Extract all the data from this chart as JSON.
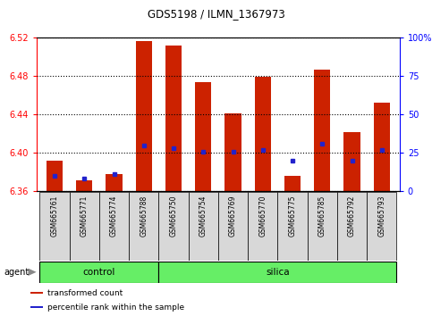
{
  "title": "GDS5198 / ILMN_1367973",
  "samples": [
    "GSM665761",
    "GSM665771",
    "GSM665774",
    "GSM665788",
    "GSM665750",
    "GSM665754",
    "GSM665769",
    "GSM665770",
    "GSM665775",
    "GSM665785",
    "GSM665792",
    "GSM665793"
  ],
  "groups": [
    "control",
    "control",
    "control",
    "control",
    "silica",
    "silica",
    "silica",
    "silica",
    "silica",
    "silica",
    "silica",
    "silica"
  ],
  "transformed_count": [
    6.392,
    6.371,
    6.378,
    6.517,
    6.512,
    6.474,
    6.441,
    6.479,
    6.376,
    6.487,
    6.422,
    6.452
  ],
  "percentile_rank": [
    10,
    8,
    11,
    30,
    28,
    26,
    26,
    27,
    20,
    31,
    20,
    27
  ],
  "ymin": 6.36,
  "ymax": 6.52,
  "yticks": [
    6.36,
    6.4,
    6.44,
    6.48,
    6.52
  ],
  "right_yticks": [
    0,
    25,
    50,
    75,
    100
  ],
  "bar_color": "#cc2200",
  "dot_color": "#2222cc",
  "control_color": "#66ee66",
  "silica_color": "#66ee66",
  "bar_bottom": 6.36,
  "n_control": 4,
  "agent_label": "agent",
  "legend_items": [
    "transformed count",
    "percentile rank within the sample"
  ]
}
